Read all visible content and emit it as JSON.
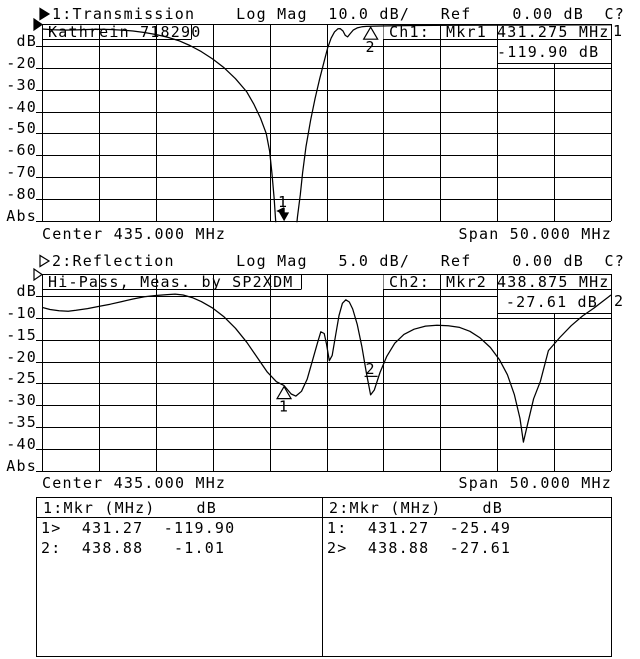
{
  "device": {
    "background": "#ffffff",
    "foreground": "#000000"
  },
  "ch1": {
    "header": "1:Transmission    Log Mag  10.0 dB/   Ref    0.00 dB  C?",
    "trace_label": "Kathrein 718290",
    "readout": {
      "ch": "Ch1:",
      "mkr": "Mkr1",
      "freq": "431.275 MHz",
      "level": "-119.90 dB"
    },
    "footer_center": "Center 435.000 MHz",
    "footer_span": "Span 50.000 MHz"
  },
  "ch2": {
    "header": "2:Reflection      Log Mag   5.0 dB/   Ref    0.00 dB  C?",
    "trace_label": "Hi-Pass, Meas. by SP2XDM",
    "readout": {
      "ch": "Ch2:",
      "mkr": "Mkr2",
      "freq": "438.875 MHz",
      "level": "-27.61 dB"
    },
    "footer_center": "Center 435.000 MHz",
    "footer_span": "Span 50.000 MHz"
  },
  "marker_table": {
    "left": {
      "header": "1:Mkr (MHz)    dB",
      "rows": [
        "1>  431.27  -119.90",
        "2:  438.88   -1.01"
      ]
    },
    "right": {
      "header": "2:Mkr (MHz)    dB",
      "rows": [
        "1:  431.27  -25.49",
        "2>  438.88  -27.61"
      ]
    }
  },
  "chart_data": [
    {
      "type": "line",
      "title": "Kathrein 718290",
      "channel": "1:Transmission",
      "format": "Log Mag",
      "scale_per_div": "10.0 dB/",
      "ref_level": "0.00 dB",
      "cal_status": "C?",
      "x_center_mhz": 435.0,
      "x_span_mhz": 50.0,
      "x_range_mhz": [
        410,
        460
      ],
      "y_range_db": [
        -90,
        0
      ],
      "y_ticks": [
        "dB",
        "-20",
        "-30",
        "-40",
        "-50",
        "-60",
        "-70",
        "-80",
        "Abs"
      ],
      "grid": {
        "cols": 10,
        "rows": 9
      },
      "trace_end_label": "1",
      "markers": [
        {
          "id": "1",
          "freq_mhz": 431.275,
          "db": -119.9,
          "style": "down-arrow-offscale"
        },
        {
          "id": "2",
          "freq_mhz": 438.88,
          "db": -1.01,
          "style": "triangle-up"
        }
      ],
      "values_estimated": true,
      "series": [
        {
          "name": "S21 transmission",
          "points_mhz_db": [
            [
              410,
              -2.3
            ],
            [
              411,
              -2.6
            ],
            [
              412,
              -2.8
            ],
            [
              413,
              -2.7
            ],
            [
              414,
              -2.5
            ],
            [
              415,
              -2.4
            ],
            [
              416,
              -2.5
            ],
            [
              417,
              -2.8
            ],
            [
              418,
              -3.2
            ],
            [
              419,
              -3.9
            ],
            [
              420,
              -4.8
            ],
            [
              421,
              -6
            ],
            [
              422,
              -7.6
            ],
            [
              423,
              -9.8
            ],
            [
              424,
              -12.6
            ],
            [
              425,
              -16
            ],
            [
              426,
              -20
            ],
            [
              427,
              -25
            ],
            [
              428,
              -31
            ],
            [
              428.6,
              -36.5
            ],
            [
              429.2,
              -43
            ],
            [
              429.7,
              -50
            ],
            [
              430,
              -58
            ],
            [
              430.2,
              -68
            ],
            [
              430.4,
              -80
            ],
            [
              430.6,
              -95
            ],
            [
              431.275,
              -119.9
            ],
            [
              431.6,
              -100
            ],
            [
              431.8,
              -108
            ],
            [
              432,
              -95
            ],
            [
              432.2,
              -101
            ],
            [
              432.45,
              -88
            ],
            [
              432.7,
              -78
            ],
            [
              432.9,
              -68
            ],
            [
              433.2,
              -56
            ],
            [
              433.6,
              -44
            ],
            [
              434,
              -34
            ],
            [
              434.4,
              -25
            ],
            [
              434.8,
              -17
            ],
            [
              435.1,
              -11
            ],
            [
              435.4,
              -6.5
            ],
            [
              435.7,
              -3.6
            ],
            [
              436,
              -2.2
            ],
            [
              436.2,
              -2.1
            ],
            [
              436.45,
              -3.2
            ],
            [
              436.65,
              -5.2
            ],
            [
              436.85,
              -5.9
            ],
            [
              437.05,
              -4.6
            ],
            [
              437.35,
              -2.8
            ],
            [
              437.7,
              -1.8
            ],
            [
              438.1,
              -1.3
            ],
            [
              438.5,
              -1.1
            ],
            [
              438.88,
              -1.01
            ],
            [
              439.8,
              -0.9
            ],
            [
              441,
              -0.8
            ],
            [
              443,
              -0.7
            ],
            [
              446,
              -0.6
            ],
            [
              450,
              -0.5
            ],
            [
              454,
              -0.45
            ],
            [
              458,
              -0.4
            ],
            [
              460,
              -0.38
            ]
          ]
        }
      ]
    },
    {
      "type": "line",
      "title": "Hi-Pass, Meas. by SP2XDM",
      "channel": "2:Reflection",
      "format": "Log Mag",
      "scale_per_div": "5.0 dB/",
      "ref_level": "0.00 dB",
      "cal_status": "C?",
      "x_center_mhz": 435.0,
      "x_span_mhz": 50.0,
      "x_range_mhz": [
        410,
        460
      ],
      "y_range_db": [
        -45,
        0
      ],
      "y_ticks": [
        "dB",
        "-10",
        "-15",
        "-20",
        "-25",
        "-30",
        "-35",
        "-40",
        "Abs"
      ],
      "grid": {
        "cols": 10,
        "rows": 9
      },
      "trace_end_label": "2",
      "markers": [
        {
          "id": "1",
          "freq_mhz": 431.27,
          "db": -25.49,
          "style": "triangle-up"
        },
        {
          "id": "2",
          "freq_mhz": 438.875,
          "db": -27.61,
          "style": "underlined-digit"
        }
      ],
      "values_estimated": true,
      "series": [
        {
          "name": "S11 reflection",
          "points_mhz_db": [
            [
              410,
              -7.6
            ],
            [
              410.7,
              -8.1
            ],
            [
              411.5,
              -8.4
            ],
            [
              412.3,
              -8.5
            ],
            [
              413,
              -8.3
            ],
            [
              414,
              -7.9
            ],
            [
              415,
              -7.4
            ],
            [
              416,
              -6.9
            ],
            [
              417,
              -6.3
            ],
            [
              418,
              -5.7
            ],
            [
              419,
              -5.2
            ],
            [
              420,
              -4.9
            ],
            [
              421,
              -4.7
            ],
            [
              421.7,
              -4.6
            ],
            [
              422.4,
              -4.8
            ],
            [
              423.2,
              -5.4
            ],
            [
              424,
              -6.3
            ],
            [
              425,
              -7.8
            ],
            [
              426,
              -9.8
            ],
            [
              427,
              -12.4
            ],
            [
              428,
              -15.6
            ],
            [
              429,
              -19.4
            ],
            [
              429.8,
              -22.4
            ],
            [
              430.6,
              -24.6
            ],
            [
              431.27,
              -25.49
            ],
            [
              431.9,
              -27.4
            ],
            [
              432.3,
              -27.9
            ],
            [
              432.8,
              -26.8
            ],
            [
              433.3,
              -24
            ],
            [
              433.8,
              -19.5
            ],
            [
              434.2,
              -15.8
            ],
            [
              434.5,
              -13.2
            ],
            [
              434.8,
              -13.6
            ],
            [
              435,
              -16
            ],
            [
              435.25,
              -19.8
            ],
            [
              435.5,
              -18.6
            ],
            [
              435.8,
              -14
            ],
            [
              436.1,
              -9.5
            ],
            [
              436.4,
              -6.7
            ],
            [
              436.7,
              -5.9
            ],
            [
              437,
              -6.4
            ],
            [
              437.3,
              -8
            ],
            [
              437.7,
              -11.5
            ],
            [
              438.1,
              -16.5
            ],
            [
              438.5,
              -22.5
            ],
            [
              438.875,
              -27.61
            ],
            [
              439.2,
              -26.5
            ],
            [
              439.7,
              -22.5
            ],
            [
              440.3,
              -18.8
            ],
            [
              441,
              -15.8
            ],
            [
              441.8,
              -13.8
            ],
            [
              442.7,
              -12.6
            ],
            [
              443.7,
              -11.9
            ],
            [
              444.7,
              -11.7
            ],
            [
              445.7,
              -11.8
            ],
            [
              446.7,
              -12.2
            ],
            [
              447.6,
              -13.1
            ],
            [
              448.5,
              -14.6
            ],
            [
              449.4,
              -16.8
            ],
            [
              450.2,
              -19.6
            ],
            [
              450.9,
              -23
            ],
            [
              451.5,
              -27.5
            ],
            [
              452,
              -33
            ],
            [
              452.3,
              -38.4
            ],
            [
              452.7,
              -34
            ],
            [
              453.2,
              -28.5
            ],
            [
              453.8,
              -24.5
            ],
            [
              454.5,
              -17.5
            ],
            [
              455.5,
              -14.5
            ],
            [
              456.5,
              -11.8
            ],
            [
              457.5,
              -9.6
            ],
            [
              458.5,
              -7.8
            ],
            [
              459.3,
              -6.2
            ],
            [
              460,
              -4.8
            ]
          ]
        }
      ]
    }
  ]
}
